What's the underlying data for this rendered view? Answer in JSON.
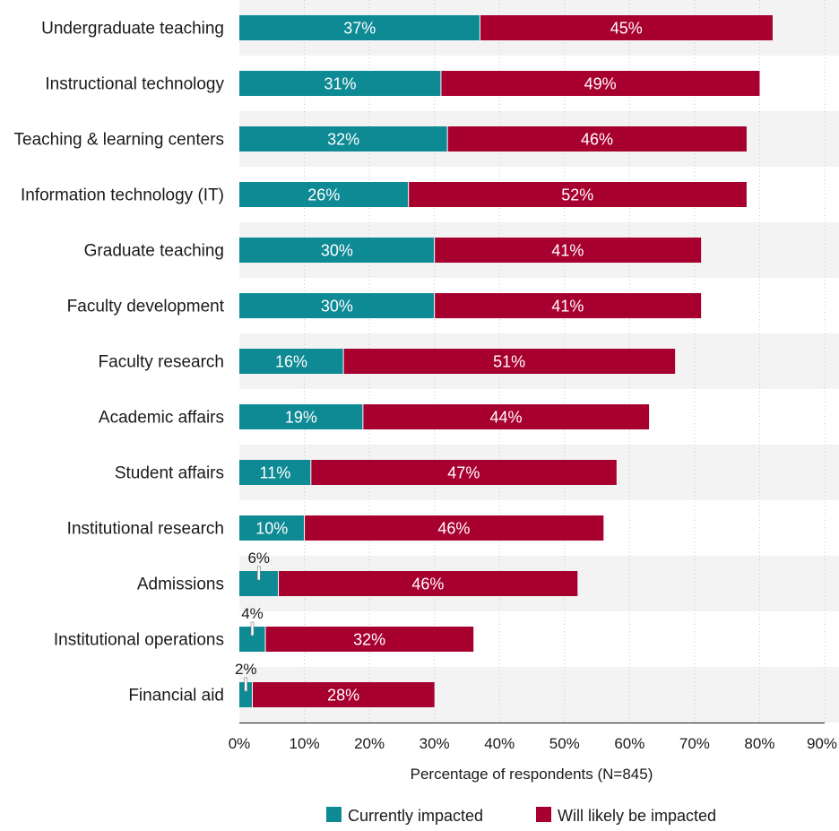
{
  "chart_data": {
    "type": "bar",
    "orientation": "horizontal",
    "stacked": true,
    "categories": [
      "Undergraduate teaching",
      "Instructional technology",
      "Teaching & learning centers",
      "Information technology (IT)",
      "Graduate teaching",
      "Faculty development",
      "Faculty research",
      "Academic affairs",
      "Student affairs",
      "Institutional research",
      "Admissions",
      "Institutional operations",
      "Financial aid"
    ],
    "series": [
      {
        "name": "Currently impacted",
        "color": "#0e8a94",
        "values": [
          37,
          31,
          32,
          26,
          30,
          30,
          16,
          19,
          11,
          10,
          6,
          4,
          2
        ]
      },
      {
        "name": "Will likely be impacted",
        "color": "#a8002e",
        "values": [
          45,
          49,
          46,
          52,
          41,
          41,
          51,
          44,
          47,
          46,
          46,
          32,
          28
        ]
      }
    ],
    "xlabel": "Percentage of respondents (N=845)",
    "ylabel": "",
    "title": "",
    "xlim": [
      0,
      90
    ],
    "xticks": [
      0,
      10,
      20,
      30,
      40,
      50,
      60,
      70,
      80,
      90
    ],
    "value_suffix": "%",
    "grid": "vertical gridlines, dotted",
    "row_banding": "alternating light gray rows",
    "legend_position": "bottom-center"
  }
}
